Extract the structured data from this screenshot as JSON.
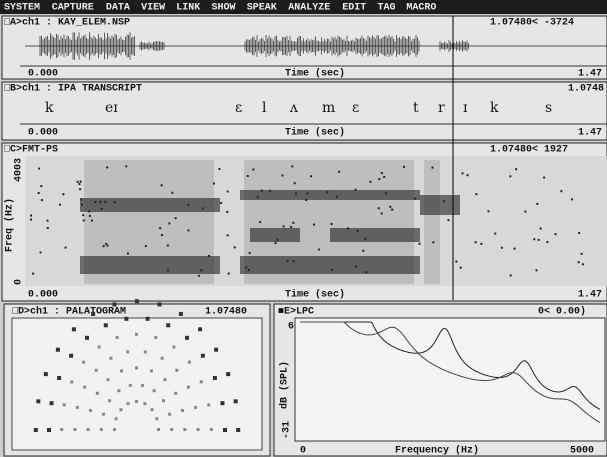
{
  "menu": [
    "SYSTEM",
    "CAPTURE",
    "DATA",
    "VIEW",
    "LINK",
    "SHOW",
    "SPEAK",
    "ANALYZE",
    "EDIT",
    "TAG",
    "MACRO"
  ],
  "panel_a": {
    "title": "□A>ch1 : KAY_ELEM.NSP",
    "readout": "1.07480< -3724",
    "time_start": "0.000",
    "time_label": "Time (sec)",
    "time_end": "1.47"
  },
  "panel_b": {
    "title": "□B>ch1 : IPA TRANSCRIPT",
    "readout": "1.0748",
    "phones": [
      "k",
      "eɪ",
      "ɛ",
      "l",
      "ʌ",
      "m",
      "ɛ",
      "t",
      "r",
      "ɪ",
      "k",
      "s"
    ],
    "time_start": "0.000",
    "time_label": "Time (sec)",
    "time_end": "1.47"
  },
  "panel_c": {
    "title": "□C>FMT-PS",
    "readout": "1.07480< 1927",
    "y_label": "Freq (Hz)",
    "y_top": "4003",
    "y_bottom": "0",
    "time_start": "0.000",
    "time_label": "Time (sec)",
    "time_end": "1.47"
  },
  "panel_d": {
    "title": "□D>ch1 : PALATOGRAM",
    "readout": "1.07480"
  },
  "panel_e": {
    "title": "■E>LPC",
    "readout": "0< 0.00)",
    "y_label": "dB (SPL)",
    "y_top": "6",
    "y_bottom": "-31",
    "x_start": "0",
    "x_label": "Frequency (Hz)",
    "x_end": "5000"
  }
}
